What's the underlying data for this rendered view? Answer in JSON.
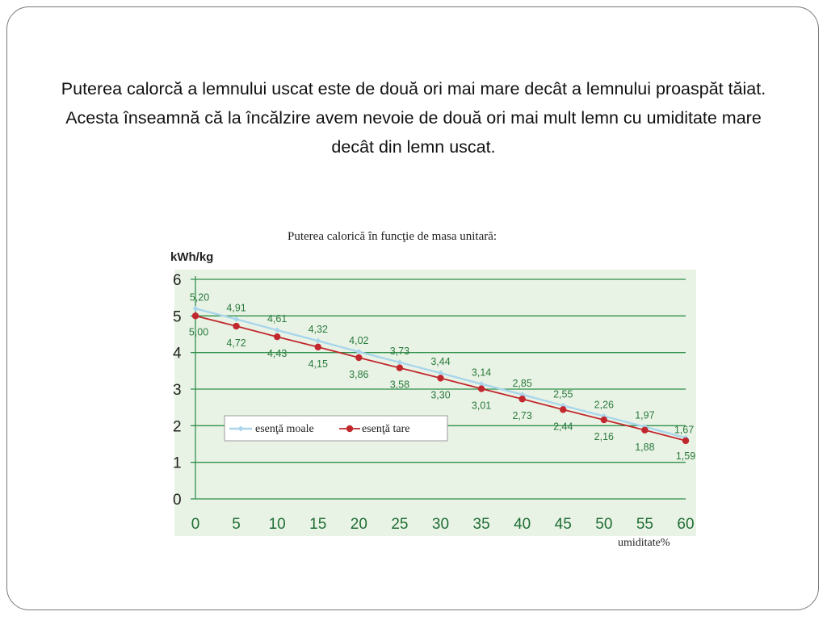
{
  "slide": {
    "text": "Puterea calorcă a lemnului uscat este de două ori mai mare decât a lemnului proaspăt tăiat. Acesta înseamnă că la încălzire avem nevoie de două ori mai mult lemn cu umiditate mare decât din lemn uscat."
  },
  "chart_data": {
    "type": "line",
    "title": "Puterea calorică în  funcţie de masa unitară:",
    "ylabel": "kWh/kg",
    "xlabel": "umiditate%",
    "x": [
      0,
      5,
      10,
      15,
      20,
      25,
      30,
      35,
      40,
      45,
      50,
      55,
      60
    ],
    "xticks": [
      "0",
      "5",
      "10",
      "15",
      "20",
      "25",
      "30",
      "35",
      "40",
      "45",
      "50",
      "55",
      "60"
    ],
    "yticks": [
      "0",
      "1",
      "2",
      "3",
      "4",
      "5",
      "6"
    ],
    "ylim": [
      0,
      6
    ],
    "xlim": [
      0,
      60
    ],
    "grid": "horizontal",
    "legend_position": "lower-left",
    "series": [
      {
        "name": "esenţă moale",
        "color": "#a9d6ec",
        "marker": "diamond",
        "values": [
          5.2,
          4.91,
          4.61,
          4.32,
          4.02,
          3.73,
          3.44,
          3.14,
          2.85,
          2.55,
          2.26,
          1.97,
          1.67
        ],
        "labels": [
          "5,20",
          "4,91",
          "4,61",
          "4,32",
          "4,02",
          "3,73",
          "3,44",
          "3,14",
          "2,85",
          "2,55",
          "2,26",
          "1,97",
          "1,67"
        ]
      },
      {
        "name": "esenţă tare",
        "color": "#c0282d",
        "marker": "circle",
        "values": [
          5.0,
          4.72,
          4.43,
          4.15,
          3.86,
          3.58,
          3.3,
          3.01,
          2.73,
          2.44,
          2.16,
          1.88,
          1.59
        ],
        "labels": [
          "5,00",
          "4,72",
          "4,43",
          "4,15",
          "3,86",
          "3,58",
          "3,30",
          "3,01",
          "2,73",
          "2,44",
          "2,16",
          "1,88",
          "1,59"
        ]
      }
    ],
    "colors": {
      "plot_background": "#e9f3e5",
      "gridline": "#2f8f4a",
      "label_text": "#2a7a3e",
      "tick_text": "#1f6e35"
    }
  }
}
